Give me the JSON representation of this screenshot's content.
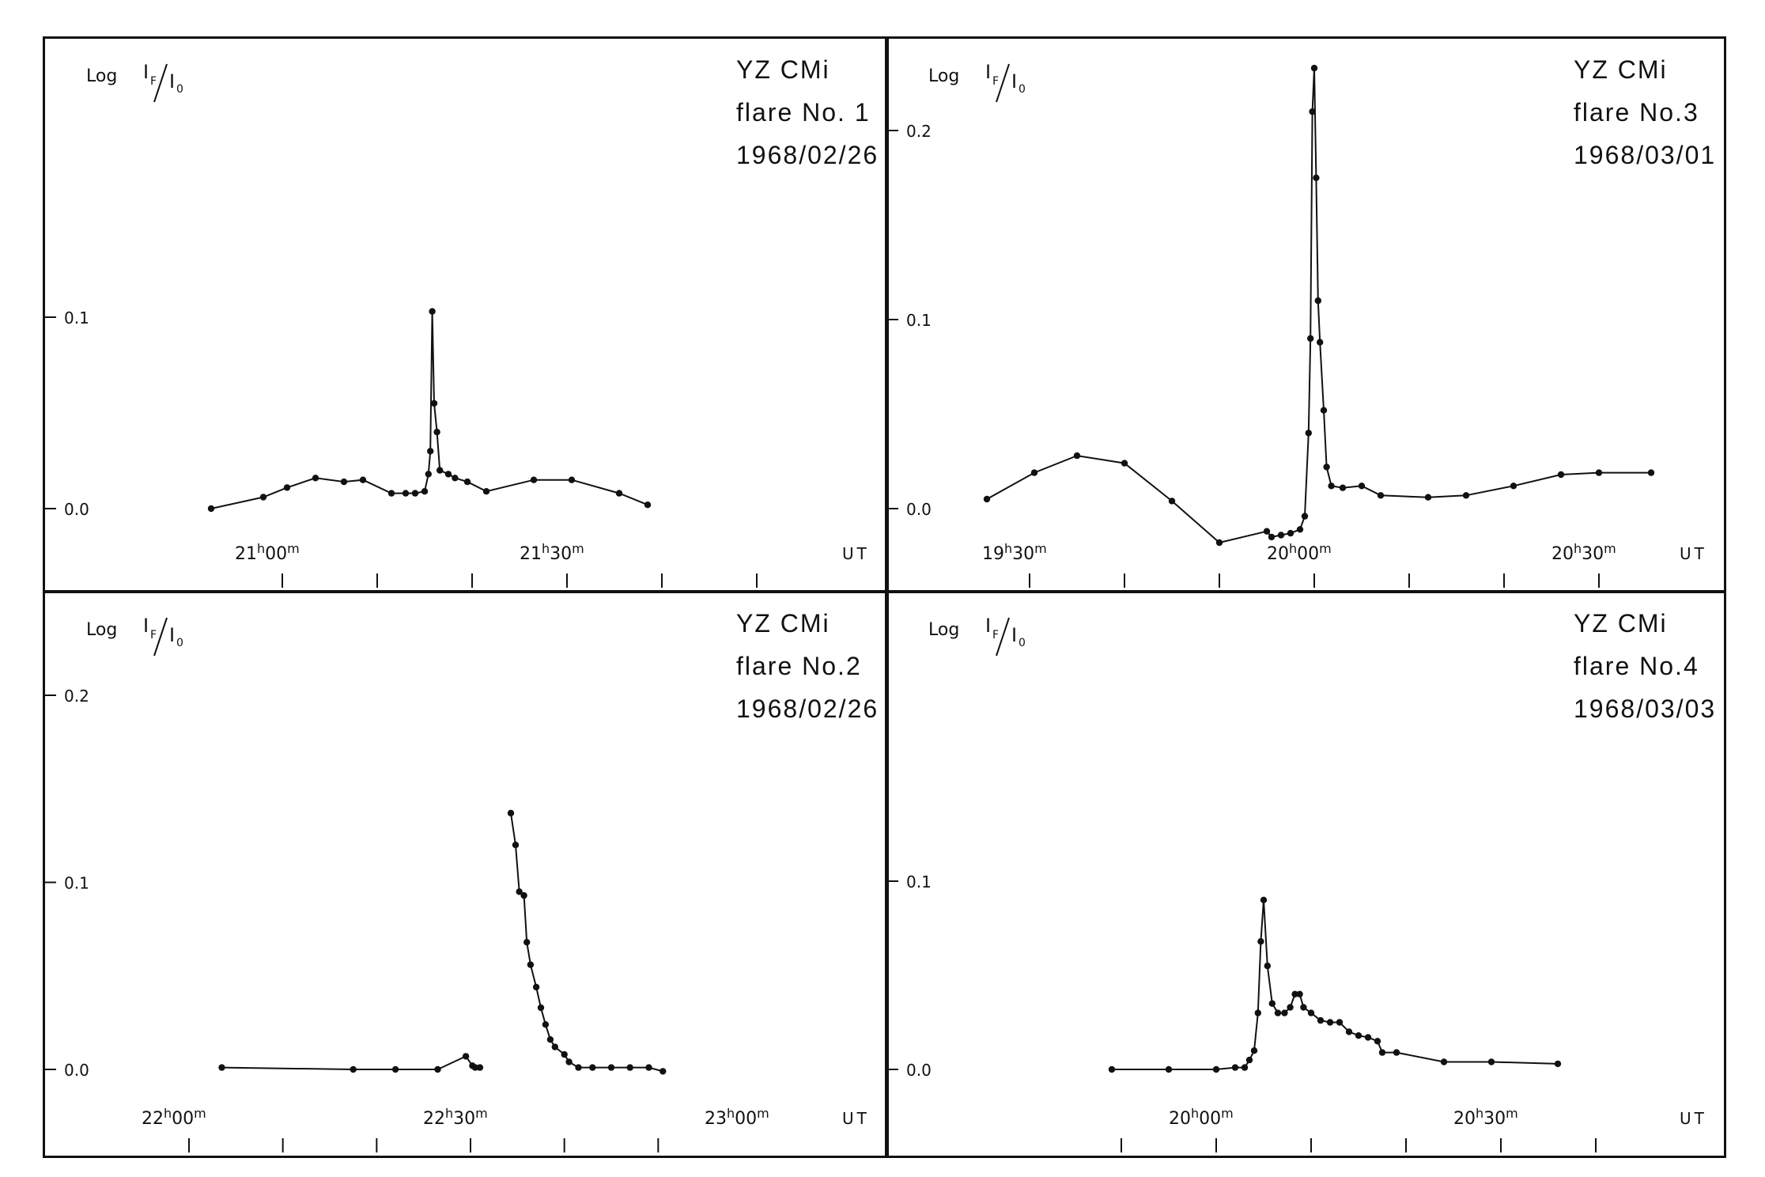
{
  "chart_data": [
    {
      "type": "line",
      "star": "YZ CMi",
      "flare": "flare No. 1",
      "date": "1968/02/26",
      "ylabel": {
        "log": "Log",
        "num": "I",
        "num_sub": "F",
        "den": "I",
        "den_sub": "0"
      },
      "xunit": "UT",
      "ylim": [
        0.0,
        0.1
      ],
      "yticks": [
        {
          "v": 0.0,
          "label": "0.0"
        },
        {
          "v": 0.1,
          "label": "0.1"
        }
      ],
      "xlim_minutes": [
        1258.0,
        1315.0
      ],
      "xticks": [
        {
          "t": 1260,
          "label_main": "21",
          "label_sup_h": "h",
          "label_min": "00",
          "label_sup_m": "m"
        },
        {
          "t": 1290,
          "label_main": "21",
          "label_sup_h": "h",
          "label_min": "30",
          "label_sup_m": "m"
        }
      ],
      "minor_xticks": [
        1260,
        1270,
        1280,
        1290,
        1300,
        1310
      ],
      "series": [
        {
          "points": [
            [
              1252.5,
              0.0
            ],
            [
              1258.0,
              0.006
            ],
            [
              1260.5,
              0.011
            ],
            [
              1263.5,
              0.016
            ],
            [
              1266.5,
              0.014
            ],
            [
              1268.5,
              0.015
            ],
            [
              1271.5,
              0.008
            ],
            [
              1273.0,
              0.008
            ],
            [
              1274.0,
              0.008
            ],
            [
              1275.0,
              0.009
            ],
            [
              1275.4,
              0.018
            ],
            [
              1275.6,
              0.03
            ],
            [
              1275.8,
              0.103
            ],
            [
              1276.0,
              0.055
            ],
            [
              1276.3,
              0.04
            ],
            [
              1276.6,
              0.02
            ],
            [
              1277.5,
              0.018
            ],
            [
              1278.2,
              0.016
            ],
            [
              1279.5,
              0.014
            ],
            [
              1281.5,
              0.009
            ],
            [
              1286.5,
              0.015
            ],
            [
              1290.5,
              0.015
            ],
            [
              1295.5,
              0.008
            ],
            [
              1298.5,
              0.002
            ]
          ]
        }
      ]
    },
    {
      "type": "line",
      "star": "YZ CMi",
      "flare": "flare No.3",
      "date": "1968/03/01",
      "ylabel": {
        "log": "Log",
        "num": "I",
        "num_sub": "F",
        "den": "I",
        "den_sub": "0"
      },
      "xunit": "UT",
      "ylim": [
        0.0,
        0.2
      ],
      "yticks": [
        {
          "v": 0.0,
          "label": "0.0"
        },
        {
          "v": 0.1,
          "label": "0.1"
        },
        {
          "v": 0.2,
          "label": "0.2"
        }
      ],
      "xticks": [
        {
          "t": 1170,
          "label_main": "19",
          "label_sup_h": "h",
          "label_min": "30",
          "label_sup_m": "m"
        },
        {
          "t": 1200,
          "label_main": "20",
          "label_sup_h": "h",
          "label_min": "00",
          "label_sup_m": "m"
        },
        {
          "t": 1230,
          "label_main": "20",
          "label_sup_h": "h",
          "label_min": "30",
          "label_sup_m": "m"
        }
      ],
      "minor_xticks": [
        1170,
        1180,
        1190,
        1200,
        1210,
        1220,
        1230
      ],
      "series": [
        {
          "points": [
            [
              1165.5,
              0.005
            ],
            [
              1170.5,
              0.019
            ],
            [
              1175.0,
              0.028
            ],
            [
              1180.0,
              0.024
            ],
            [
              1185.0,
              0.004
            ],
            [
              1190.0,
              -0.018
            ],
            [
              1195.0,
              -0.012
            ],
            [
              1195.5,
              -0.015
            ],
            [
              1196.5,
              -0.014
            ],
            [
              1197.5,
              -0.013
            ],
            [
              1198.5,
              -0.011
            ],
            [
              1199.0,
              -0.004
            ],
            [
              1199.4,
              0.04
            ],
            [
              1199.6,
              0.09
            ],
            [
              1199.8,
              0.21
            ],
            [
              1200.0,
              0.233
            ],
            [
              1200.2,
              0.175
            ],
            [
              1200.4,
              0.11
            ],
            [
              1200.6,
              0.088
            ],
            [
              1201.0,
              0.052
            ],
            [
              1201.3,
              0.022
            ],
            [
              1201.8,
              0.012
            ],
            [
              1203.0,
              0.011
            ],
            [
              1205.0,
              0.012
            ],
            [
              1207.0,
              0.007
            ],
            [
              1212.0,
              0.006
            ],
            [
              1216.0,
              0.007
            ],
            [
              1221.0,
              0.012
            ],
            [
              1226.0,
              0.018
            ],
            [
              1230.0,
              0.019
            ],
            [
              1235.5,
              0.019
            ]
          ]
        }
      ]
    },
    {
      "type": "line",
      "star": "YZ CMi",
      "flare": "flare No.2",
      "date": "1968/02/26",
      "ylabel": {
        "log": "Log",
        "num": "I",
        "num_sub": "F",
        "den": "I",
        "den_sub": "0"
      },
      "xunit": "UT",
      "ylim": [
        0.0,
        0.2
      ],
      "yticks": [
        {
          "v": 0.0,
          "label": "0.0"
        },
        {
          "v": 0.1,
          "label": "0.1"
        },
        {
          "v": 0.2,
          "label": "0.2"
        }
      ],
      "xticks": [
        {
          "t": 1320,
          "label_main": "22",
          "label_sup_h": "h",
          "label_min": "00",
          "label_sup_m": "m"
        },
        {
          "t": 1350,
          "label_main": "22",
          "label_sup_h": "h",
          "label_min": "30",
          "label_sup_m": "m"
        },
        {
          "t": 1380,
          "label_main": "23",
          "label_sup_h": "h",
          "label_min": "00",
          "label_sup_m": "m"
        }
      ],
      "minor_xticks": [
        1320,
        1330,
        1340,
        1350,
        1360,
        1370
      ],
      "series": [
        {
          "points": [
            [
              1323.5,
              0.001
            ],
            [
              1337.5,
              0.0
            ],
            [
              1342.0,
              0.0
            ],
            [
              1346.5,
              0.0
            ],
            [
              1349.5,
              0.007
            ],
            [
              1350.2,
              0.002
            ],
            [
              1350.5,
              0.001
            ],
            [
              1351.0,
              0.001
            ]
          ]
        },
        {
          "points": [
            [
              1354.3,
              0.137
            ],
            [
              1354.8,
              0.12
            ],
            [
              1355.2,
              0.095
            ],
            [
              1355.7,
              0.093
            ],
            [
              1356.0,
              0.068
            ],
            [
              1356.4,
              0.056
            ],
            [
              1357.0,
              0.044
            ],
            [
              1357.5,
              0.033
            ],
            [
              1358.0,
              0.024
            ],
            [
              1358.5,
              0.016
            ],
            [
              1359.0,
              0.012
            ],
            [
              1360.0,
              0.008
            ],
            [
              1360.5,
              0.004
            ],
            [
              1361.5,
              0.001
            ],
            [
              1363.0,
              0.001
            ],
            [
              1365.0,
              0.001
            ],
            [
              1367.0,
              0.001
            ],
            [
              1369.0,
              0.001
            ],
            [
              1370.5,
              -0.001
            ]
          ]
        }
      ]
    },
    {
      "type": "line",
      "star": "YZ CMi",
      "flare": "flare No.4",
      "date": "1968/03/03",
      "ylabel": {
        "log": "Log",
        "num": "I",
        "num_sub": "F",
        "den": "I",
        "den_sub": "0"
      },
      "xunit": "UT",
      "ylim": [
        0.0,
        0.1
      ],
      "yticks": [
        {
          "v": 0.0,
          "label": "0.0"
        },
        {
          "v": 0.1,
          "label": "0.1"
        }
      ],
      "xticks": [
        {
          "t": 1200,
          "label_main": "20",
          "label_sup_h": "h",
          "label_min": "00",
          "label_sup_m": "m"
        },
        {
          "t": 1230,
          "label_main": "20",
          "label_sup_h": "h",
          "label_min": "30",
          "label_sup_m": "m"
        }
      ],
      "minor_xticks": [
        1190,
        1200,
        1210,
        1220,
        1230,
        1240
      ],
      "series": [
        {
          "points": [
            [
              1189.0,
              0.0
            ],
            [
              1195.0,
              0.0
            ],
            [
              1200.0,
              0.0
            ],
            [
              1202.0,
              0.001
            ],
            [
              1203.0,
              0.001
            ],
            [
              1203.5,
              0.005
            ],
            [
              1204.0,
              0.01
            ],
            [
              1204.4,
              0.03
            ],
            [
              1204.7,
              0.068
            ],
            [
              1205.0,
              0.09
            ],
            [
              1205.4,
              0.055
            ],
            [
              1205.9,
              0.035
            ],
            [
              1206.5,
              0.03
            ],
            [
              1207.2,
              0.03
            ],
            [
              1207.8,
              0.033
            ],
            [
              1208.3,
              0.04
            ],
            [
              1208.8,
              0.04
            ],
            [
              1209.2,
              0.033
            ],
            [
              1210.0,
              0.03
            ],
            [
              1211.0,
              0.026
            ],
            [
              1212.0,
              0.025
            ],
            [
              1213.0,
              0.025
            ],
            [
              1214.0,
              0.02
            ],
            [
              1215.0,
              0.018
            ],
            [
              1216.0,
              0.017
            ],
            [
              1217.0,
              0.015
            ],
            [
              1217.5,
              0.009
            ],
            [
              1219.0,
              0.009
            ],
            [
              1224.0,
              0.004
            ],
            [
              1229.0,
              0.004
            ],
            [
              1236.0,
              0.003
            ]
          ]
        }
      ]
    }
  ]
}
